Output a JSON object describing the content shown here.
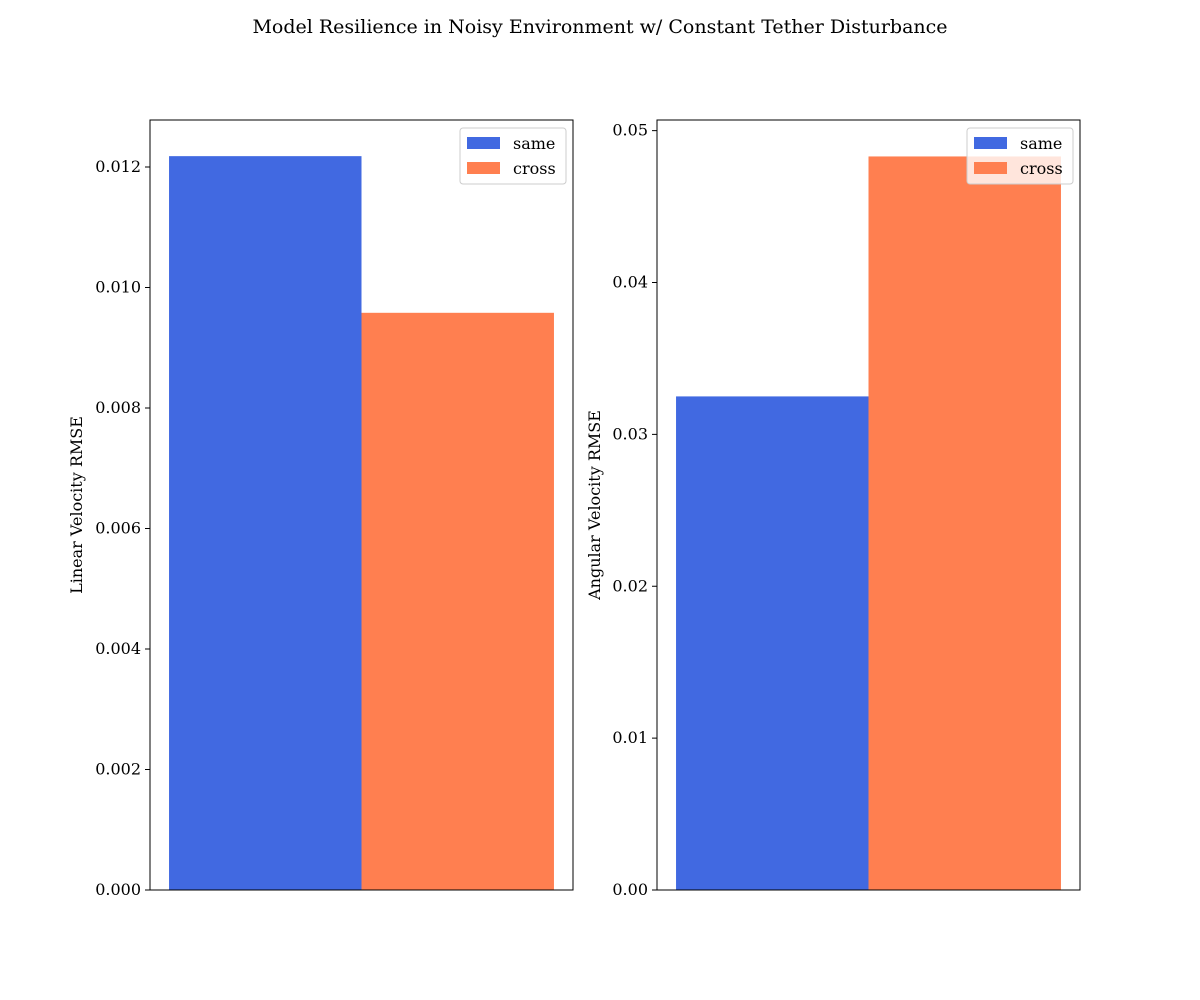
{
  "figure": {
    "title": "Model Resilience in Noisy Environment w/ Constant Tether Disturbance"
  },
  "chart_data": [
    {
      "type": "bar",
      "title": "",
      "xlabel": "",
      "ylabel": "Linear Velocity RMSE",
      "ylim": [
        0,
        0.01278
      ],
      "yticks": [
        0.0,
        0.002,
        0.004,
        0.006,
        0.008,
        0.01,
        0.012
      ],
      "ytick_labels": [
        "0.000",
        "0.002",
        "0.004",
        "0.006",
        "0.008",
        "0.010",
        "0.012"
      ],
      "grid": false,
      "legend_position": "top-right",
      "series": [
        {
          "name": "same",
          "values": [
            0.01218
          ],
          "color": "#4169E1"
        },
        {
          "name": "cross",
          "values": [
            0.00958
          ],
          "color": "#FF7F50"
        }
      ]
    },
    {
      "type": "bar",
      "title": "",
      "xlabel": "",
      "ylabel": "Angular Velocity RMSE",
      "ylim": [
        0,
        0.0507
      ],
      "yticks": [
        0.0,
        0.01,
        0.02,
        0.03,
        0.04,
        0.05
      ],
      "ytick_labels": [
        "0.00",
        "0.01",
        "0.02",
        "0.03",
        "0.04",
        "0.05"
      ],
      "grid": false,
      "legend_position": "top-right",
      "series": [
        {
          "name": "same",
          "values": [
            0.0325
          ],
          "color": "#4169E1"
        },
        {
          "name": "cross",
          "values": [
            0.0483
          ],
          "color": "#FF7F50"
        }
      ]
    }
  ]
}
